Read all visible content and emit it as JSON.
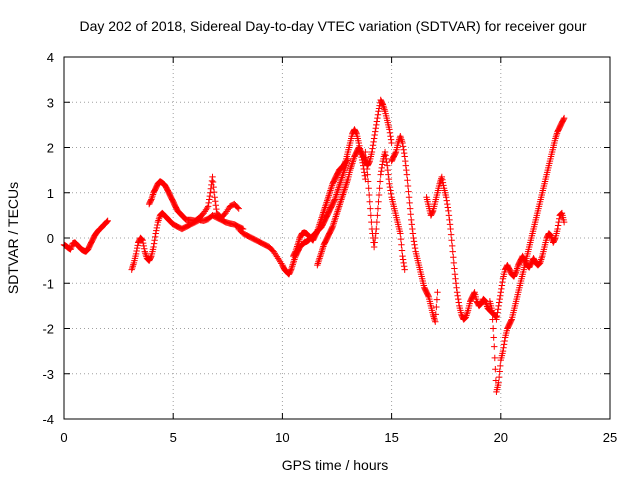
{
  "chart_data": {
    "type": "scatter",
    "title": "Day 202 of 2018, Sidereal Day-to-day VTEC variation (SDTVAR) for receiver gour",
    "xlabel": "GPS time / hours",
    "ylabel": "SDTVAR / TECUs",
    "xlim": [
      0,
      25
    ],
    "ylim": [
      -4,
      4
    ],
    "xticks": [
      0,
      5,
      10,
      15,
      20,
      25
    ],
    "yticks": [
      -4,
      -3,
      -2,
      -1,
      0,
      1,
      2,
      3,
      4
    ],
    "xtick_labels": [
      "0",
      "5",
      "10",
      "15",
      "20",
      "25"
    ],
    "ytick_labels": [
      "-4",
      "-3",
      "-2",
      "-1",
      "0",
      "1",
      "2",
      "3",
      "4"
    ],
    "grid": true,
    "marker": "+",
    "series": [
      {
        "name": "SDTVAR",
        "color": "#ff0000",
        "segments": [
          {
            "x": [
              0.0,
              0.1,
              0.2,
              0.3,
              0.4,
              0.5,
              0.6,
              0.7,
              0.8,
              0.9,
              1.0,
              1.1,
              1.2,
              1.3,
              1.4,
              1.5,
              1.6,
              1.7,
              1.8,
              1.9,
              2.0
            ],
            "y": [
              -0.15,
              -0.18,
              -0.22,
              -0.25,
              -0.12,
              -0.1,
              -0.15,
              -0.2,
              -0.25,
              -0.28,
              -0.3,
              -0.25,
              -0.15,
              -0.05,
              0.05,
              0.12,
              0.18,
              0.22,
              0.28,
              0.32,
              0.38
            ]
          },
          {
            "x": [
              3.1,
              3.2,
              3.3,
              3.4,
              3.5,
              3.6,
              3.7,
              3.8,
              3.9,
              4.0,
              4.1,
              4.2,
              4.3,
              4.4,
              4.5,
              4.6,
              4.7,
              4.8,
              4.9,
              5.0,
              5.2,
              5.4,
              5.6,
              5.8,
              6.0,
              6.2,
              6.4,
              6.6,
              6.8,
              7.0,
              7.2,
              7.4,
              7.6,
              7.8,
              8.0,
              8.2
            ],
            "y": [
              -0.7,
              -0.55,
              -0.35,
              -0.1,
              0.0,
              -0.05,
              -0.3,
              -0.45,
              -0.5,
              -0.4,
              -0.2,
              0.1,
              0.35,
              0.5,
              0.55,
              0.5,
              0.45,
              0.4,
              0.35,
              0.3,
              0.25,
              0.2,
              0.25,
              0.3,
              0.35,
              0.4,
              0.38,
              0.42,
              0.5,
              0.45,
              0.4,
              0.35,
              0.32,
              0.3,
              0.25,
              0.2
            ]
          },
          {
            "x": [
              3.9,
              4.0,
              4.1,
              4.2,
              4.3,
              4.4,
              4.5,
              4.6,
              4.7,
              4.8,
              4.9,
              5.0,
              5.1,
              5.2,
              5.3,
              5.4,
              5.5,
              5.6,
              5.8,
              6.0,
              6.2,
              6.4,
              6.6,
              6.7,
              6.8,
              6.9,
              7.0,
              7.2,
              7.4,
              7.6,
              7.8,
              8.0
            ],
            "y": [
              0.75,
              0.85,
              1.0,
              1.1,
              1.2,
              1.25,
              1.22,
              1.18,
              1.1,
              1.0,
              0.9,
              0.8,
              0.7,
              0.6,
              0.55,
              0.5,
              0.45,
              0.4,
              0.4,
              0.38,
              0.45,
              0.55,
              0.7,
              1.0,
              1.35,
              0.9,
              0.55,
              0.45,
              0.55,
              0.7,
              0.75,
              0.65
            ]
          },
          {
            "x": [
              8.0,
              8.2,
              8.4,
              8.6,
              8.8,
              9.0,
              9.2,
              9.4,
              9.6,
              9.8,
              10.0,
              10.1,
              10.2,
              10.3,
              10.4,
              10.5,
              10.6,
              10.7,
              10.8,
              10.9,
              11.0,
              11.1,
              11.2,
              11.3,
              11.4,
              11.5,
              11.6,
              11.7,
              11.8,
              11.9,
              12.0,
              12.1,
              12.2,
              12.3,
              12.4,
              12.5,
              12.6,
              12.7,
              12.8,
              12.9,
              13.0
            ],
            "y": [
              0.2,
              0.1,
              0.05,
              0.0,
              -0.05,
              -0.1,
              -0.15,
              -0.2,
              -0.3,
              -0.45,
              -0.6,
              -0.7,
              -0.75,
              -0.8,
              -0.7,
              -0.55,
              -0.4,
              -0.3,
              -0.2,
              -0.15,
              -0.1,
              -0.08,
              -0.05,
              0.0,
              0.05,
              0.1,
              0.15,
              0.2,
              0.25,
              0.35,
              0.45,
              0.55,
              0.65,
              0.75,
              0.85,
              1.0,
              1.15,
              1.3,
              1.45,
              1.6,
              1.75
            ]
          },
          {
            "x": [
              10.5,
              10.6,
              10.7,
              10.8,
              10.9,
              11.0,
              11.1,
              11.2,
              11.3,
              11.4,
              11.5,
              11.6,
              11.7,
              11.8,
              11.9,
              12.0,
              12.1,
              12.2,
              12.3,
              12.4,
              12.5,
              12.6,
              12.7,
              12.8,
              12.9,
              13.0,
              13.1,
              13.2,
              13.3,
              13.4,
              13.5,
              13.6,
              13.7,
              13.8
            ],
            "y": [
              -0.4,
              -0.3,
              -0.15,
              0.0,
              0.1,
              0.12,
              0.1,
              0.05,
              0.0,
              -0.05,
              0.05,
              0.15,
              0.3,
              0.45,
              0.6,
              0.75,
              0.9,
              1.05,
              1.2,
              1.3,
              1.4,
              1.5,
              1.55,
              1.6,
              1.7,
              1.9,
              2.1,
              2.3,
              2.4,
              2.3,
              2.1,
              1.85,
              1.6,
              1.3
            ]
          },
          {
            "x": [
              11.6,
              11.7,
              11.8,
              11.9,
              12.0,
              12.1,
              12.2,
              12.3,
              12.4,
              12.5,
              12.6,
              12.7,
              12.8,
              12.9,
              13.0,
              13.1,
              13.2,
              13.3,
              13.4,
              13.5,
              13.6,
              13.7,
              13.8,
              13.9,
              14.0,
              14.1,
              14.2,
              14.3,
              14.4,
              14.5,
              14.6,
              14.7,
              14.8,
              14.9,
              15.0
            ],
            "y": [
              -0.6,
              -0.45,
              -0.3,
              -0.15,
              -0.05,
              0.05,
              0.15,
              0.25,
              0.4,
              0.55,
              0.7,
              0.85,
              1.0,
              1.15,
              1.3,
              1.5,
              1.65,
              1.8,
              1.9,
              2.0,
              1.9,
              1.8,
              1.7,
              1.6,
              1.7,
              1.9,
              2.2,
              2.5,
              2.8,
              3.05,
              2.95,
              2.8,
              2.6,
              2.4,
              2.1
            ]
          },
          {
            "x": [
              13.8,
              13.9,
              14.0,
              14.1,
              14.2,
              14.3,
              14.4,
              14.5,
              14.6,
              14.7,
              14.8,
              14.9,
              15.0,
              15.1,
              15.2,
              15.3,
              15.4,
              15.5,
              15.6
            ],
            "y": [
              1.9,
              1.4,
              0.8,
              0.2,
              -0.2,
              0.2,
              0.8,
              1.4,
              1.7,
              1.9,
              1.6,
              1.2,
              0.9,
              0.7,
              0.5,
              0.3,
              0.1,
              -0.4,
              -0.7
            ]
          },
          {
            "x": [
              15.0,
              15.1,
              15.2,
              15.3,
              15.4,
              15.5,
              15.6,
              15.7,
              15.8,
              15.9,
              16.0,
              16.1,
              16.2,
              16.3,
              16.4,
              16.5,
              16.6,
              16.7,
              16.8,
              16.9,
              17.0,
              17.1
            ],
            "y": [
              1.7,
              1.8,
              1.9,
              2.1,
              2.25,
              2.1,
              1.8,
              1.4,
              0.9,
              0.4,
              0.0,
              -0.3,
              -0.5,
              -0.7,
              -0.9,
              -1.1,
              -1.2,
              -1.3,
              -1.5,
              -1.7,
              -1.85,
              -1.2
            ]
          },
          {
            "x": [
              16.6,
              16.7,
              16.8,
              16.9,
              17.0,
              17.1,
              17.2,
              17.3,
              17.4,
              17.5,
              17.6,
              17.7,
              17.8,
              17.9,
              18.0,
              18.1,
              18.2,
              18.3,
              18.4,
              18.5,
              18.6,
              18.7,
              18.8,
              18.9,
              19.0,
              19.1,
              19.2,
              19.3,
              19.4,
              19.5,
              19.6,
              19.7,
              19.8
            ],
            "y": [
              0.9,
              0.7,
              0.5,
              0.6,
              0.8,
              1.0,
              1.2,
              1.35,
              1.1,
              0.9,
              0.6,
              0.2,
              -0.3,
              -0.8,
              -1.2,
              -1.5,
              -1.7,
              -1.8,
              -1.75,
              -1.6,
              -1.4,
              -1.3,
              -1.2,
              -1.4,
              -1.5,
              -1.45,
              -1.35,
              -1.4,
              -1.55,
              -1.6,
              -1.65,
              -1.7,
              -1.75
            ]
          },
          {
            "x": [
              19.5,
              19.6,
              19.7,
              19.8,
              19.9,
              20.0,
              20.1,
              20.2,
              20.3,
              20.4,
              20.5,
              20.6,
              20.7,
              20.8,
              20.9,
              21.0,
              21.1,
              21.2,
              21.3,
              21.4,
              21.5,
              21.6,
              21.7,
              21.8,
              21.9,
              22.0,
              22.1,
              22.2,
              22.3,
              22.4,
              22.5,
              22.6,
              22.7,
              22.8,
              22.9
            ],
            "y": [
              -1.4,
              -1.6,
              -2.4,
              -3.4,
              -3.2,
              -2.7,
              -2.5,
              -2.2,
              -2.0,
              -1.9,
              -1.8,
              -1.6,
              -1.4,
              -1.2,
              -1.0,
              -0.8,
              -0.6,
              -0.4,
              -0.2,
              0.0,
              0.2,
              0.4,
              0.6,
              0.8,
              1.0,
              1.2,
              1.4,
              1.6,
              1.8,
              2.0,
              2.2,
              2.35,
              2.45,
              2.55,
              2.65
            ]
          },
          {
            "x": [
              19.8,
              19.9,
              20.0,
              20.1,
              20.2,
              20.3,
              20.4,
              20.5,
              20.6,
              20.7,
              20.8,
              20.9,
              21.0,
              21.1,
              21.2,
              21.3,
              21.4,
              21.5,
              21.6,
              21.7,
              21.8,
              21.9,
              22.0,
              22.1,
              22.2,
              22.3,
              22.4,
              22.5,
              22.6,
              22.7,
              22.8,
              22.9
            ],
            "y": [
              -1.8,
              -1.5,
              -1.2,
              -0.9,
              -0.7,
              -0.6,
              -0.7,
              -0.8,
              -0.85,
              -0.75,
              -0.6,
              -0.5,
              -0.4,
              -0.5,
              -0.6,
              -0.65,
              -0.55,
              -0.45,
              -0.55,
              -0.6,
              -0.55,
              -0.4,
              -0.2,
              0.0,
              0.1,
              0.05,
              -0.1,
              0.0,
              0.2,
              0.5,
              0.55,
              0.35
            ]
          }
        ]
      }
    ]
  }
}
